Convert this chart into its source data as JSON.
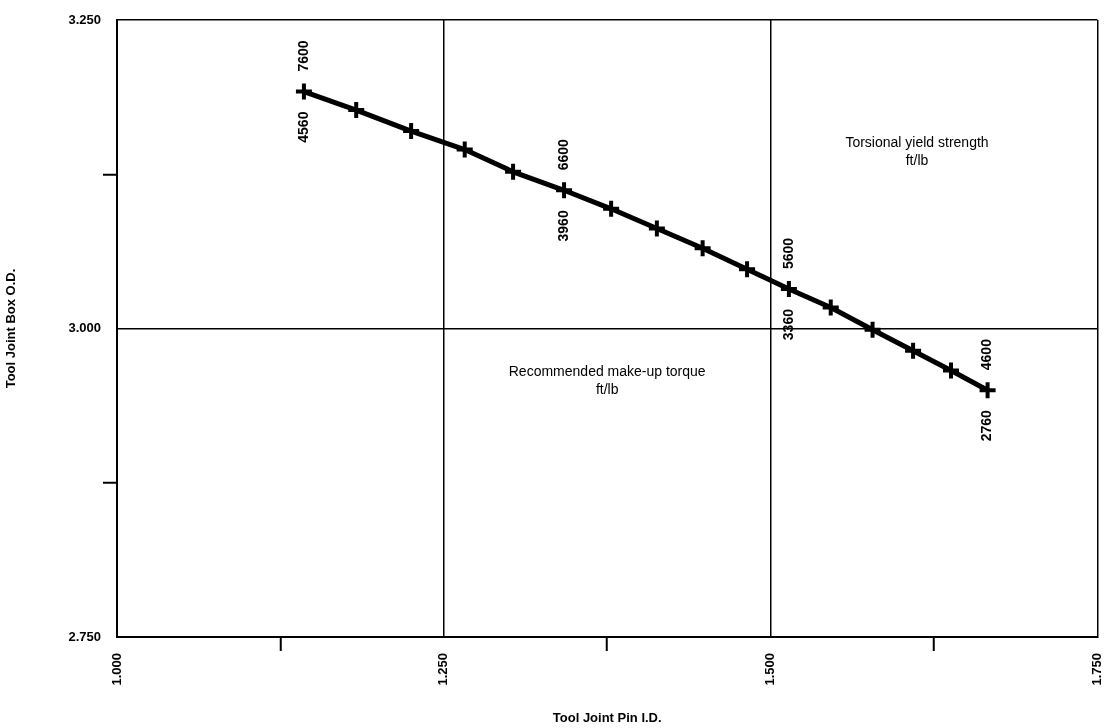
{
  "chart_data": {
    "type": "line",
    "xlabel": "Tool Joint Pin I.D.",
    "ylabel": "Tool Joint Box O.D.",
    "x": [
      1.143,
      1.183,
      1.225,
      1.266,
      1.303,
      1.342,
      1.378,
      1.413,
      1.448,
      1.482,
      1.514,
      1.546,
      1.578,
      1.609,
      1.638,
      1.666
    ],
    "series": [
      {
        "color": "#000000",
        "values": [
          3.192,
          3.177,
          3.16,
          3.145,
          3.127,
          3.112,
          3.097,
          3.081,
          3.065,
          3.048,
          3.032,
          3.017,
          2.999,
          2.982,
          2.966,
          2.95
        ]
      }
    ],
    "xlim": [
      1.0,
      1.75
    ],
    "xticks": [
      {
        "value": 1.0,
        "label": "1.000"
      },
      {
        "value": 1.125,
        "label": null
      },
      {
        "value": 1.25,
        "label": "1.250"
      },
      {
        "value": 1.375,
        "label": null
      },
      {
        "value": 1.5,
        "label": "1.500"
      },
      {
        "value": 1.625,
        "label": null
      },
      {
        "value": 1.75,
        "label": "1.750"
      }
    ],
    "ylim": [
      2.75,
      3.25
    ],
    "yticks": [
      {
        "value": 2.75,
        "label": "2.750"
      },
      {
        "value": 2.875,
        "label": null
      },
      {
        "value": 3.0,
        "label": "3.000"
      },
      {
        "value": 3.125,
        "label": null
      },
      {
        "value": 3.25,
        "label": "3.250"
      }
    ],
    "grid": true,
    "legend": false,
    "line_style": "solid",
    "marker": "cross",
    "annotations": [
      {
        "text": "7600",
        "x": 1.143,
        "y": 3.192
      },
      {
        "text": "4560",
        "x": 1.143,
        "y": 3.192
      },
      {
        "text": "6600",
        "x": 1.342,
        "y": 3.112
      },
      {
        "text": "3960",
        "x": 1.342,
        "y": 3.112
      },
      {
        "text": "5600",
        "x": 1.514,
        "y": 3.032
      },
      {
        "text": "3360",
        "x": 1.514,
        "y": 3.032
      },
      {
        "text": "4600",
        "x": 1.666,
        "y": 2.95
      },
      {
        "text": "2760",
        "x": 1.666,
        "y": 2.95
      },
      "Torsional yield strength\nft/lb",
      "Recommended make-up torque\nft/lb"
    ]
  }
}
